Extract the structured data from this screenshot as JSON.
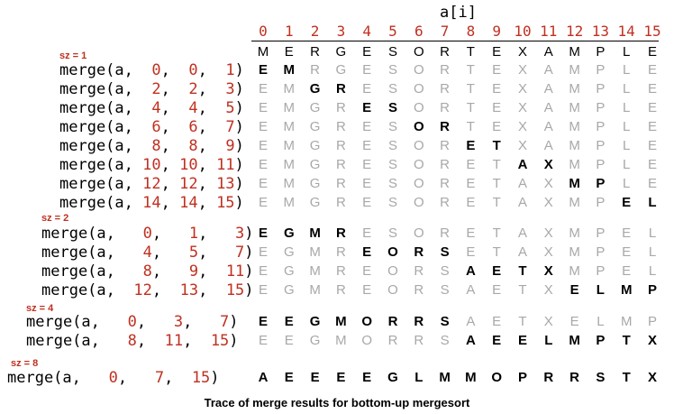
{
  "header_label": "a[i]",
  "indices": [
    "0",
    "1",
    "2",
    "3",
    "4",
    "5",
    "6",
    "7",
    "8",
    "9",
    "10",
    "11",
    "12",
    "13",
    "14",
    "15"
  ],
  "initial": [
    "M",
    "E",
    "R",
    "G",
    "E",
    "S",
    "O",
    "R",
    "T",
    "E",
    "X",
    "A",
    "M",
    "P",
    "L",
    "E"
  ],
  "groups": [
    {
      "label": "sz = 1",
      "rows": [
        {
          "lo": "0",
          "mid": "0",
          "hi": "1",
          "state": [
            "E",
            "M",
            "R",
            "G",
            "E",
            "S",
            "O",
            "R",
            "T",
            "E",
            "X",
            "A",
            "M",
            "P",
            "L",
            "E"
          ],
          "active": [
            0,
            1
          ]
        },
        {
          "lo": "2",
          "mid": "2",
          "hi": "3",
          "state": [
            "E",
            "M",
            "G",
            "R",
            "E",
            "S",
            "O",
            "R",
            "T",
            "E",
            "X",
            "A",
            "M",
            "P",
            "L",
            "E"
          ],
          "active": [
            2,
            3
          ]
        },
        {
          "lo": "4",
          "mid": "4",
          "hi": "5",
          "state": [
            "E",
            "M",
            "G",
            "R",
            "E",
            "S",
            "O",
            "R",
            "T",
            "E",
            "X",
            "A",
            "M",
            "P",
            "L",
            "E"
          ],
          "active": [
            4,
            5
          ]
        },
        {
          "lo": "6",
          "mid": "6",
          "hi": "7",
          "state": [
            "E",
            "M",
            "G",
            "R",
            "E",
            "S",
            "O",
            "R",
            "T",
            "E",
            "X",
            "A",
            "M",
            "P",
            "L",
            "E"
          ],
          "active": [
            6,
            7
          ]
        },
        {
          "lo": "8",
          "mid": "8",
          "hi": "9",
          "state": [
            "E",
            "M",
            "G",
            "R",
            "E",
            "S",
            "O",
            "R",
            "E",
            "T",
            "X",
            "A",
            "M",
            "P",
            "L",
            "E"
          ],
          "active": [
            8,
            9
          ]
        },
        {
          "lo": "10",
          "mid": "10",
          "hi": "11",
          "state": [
            "E",
            "M",
            "G",
            "R",
            "E",
            "S",
            "O",
            "R",
            "E",
            "T",
            "A",
            "X",
            "M",
            "P",
            "L",
            "E"
          ],
          "active": [
            10,
            11
          ]
        },
        {
          "lo": "12",
          "mid": "12",
          "hi": "13",
          "state": [
            "E",
            "M",
            "G",
            "R",
            "E",
            "S",
            "O",
            "R",
            "E",
            "T",
            "A",
            "X",
            "M",
            "P",
            "L",
            "E"
          ],
          "active": [
            12,
            13
          ]
        },
        {
          "lo": "14",
          "mid": "14",
          "hi": "15",
          "state": [
            "E",
            "M",
            "G",
            "R",
            "E",
            "S",
            "O",
            "R",
            "E",
            "T",
            "A",
            "X",
            "M",
            "P",
            "E",
            "L"
          ],
          "active": [
            14,
            15
          ]
        }
      ]
    },
    {
      "label": "sz = 2",
      "rows": [
        {
          "lo": "0",
          "mid": "1",
          "hi": "3",
          "state": [
            "E",
            "G",
            "M",
            "R",
            "E",
            "S",
            "O",
            "R",
            "E",
            "T",
            "A",
            "X",
            "M",
            "P",
            "E",
            "L"
          ],
          "active": [
            0,
            3
          ]
        },
        {
          "lo": "4",
          "mid": "5",
          "hi": "7",
          "state": [
            "E",
            "G",
            "M",
            "R",
            "E",
            "O",
            "R",
            "S",
            "E",
            "T",
            "A",
            "X",
            "M",
            "P",
            "E",
            "L"
          ],
          "active": [
            4,
            7
          ]
        },
        {
          "lo": "8",
          "mid": "9",
          "hi": "11",
          "state": [
            "E",
            "G",
            "M",
            "R",
            "E",
            "O",
            "R",
            "S",
            "A",
            "E",
            "T",
            "X",
            "M",
            "P",
            "E",
            "L"
          ],
          "active": [
            8,
            11
          ]
        },
        {
          "lo": "12",
          "mid": "13",
          "hi": "15",
          "state": [
            "E",
            "G",
            "M",
            "R",
            "E",
            "O",
            "R",
            "S",
            "A",
            "E",
            "T",
            "X",
            "E",
            "L",
            "M",
            "P"
          ],
          "active": [
            12,
            15
          ]
        }
      ]
    },
    {
      "label": "sz = 4",
      "rows": [
        {
          "lo": "0",
          "mid": "3",
          "hi": "7",
          "state": [
            "E",
            "E",
            "G",
            "M",
            "O",
            "R",
            "R",
            "S",
            "A",
            "E",
            "T",
            "X",
            "E",
            "L",
            "M",
            "P"
          ],
          "active": [
            0,
            7
          ]
        },
        {
          "lo": "8",
          "mid": "11",
          "hi": "15",
          "state": [
            "E",
            "E",
            "G",
            "M",
            "O",
            "R",
            "R",
            "S",
            "A",
            "E",
            "E",
            "L",
            "M",
            "P",
            "T",
            "X"
          ],
          "active": [
            8,
            15
          ]
        }
      ]
    },
    {
      "label": "sz = 8",
      "rows": [
        {
          "lo": "0",
          "mid": "7",
          "hi": "15",
          "state": [
            "A",
            "E",
            "E",
            "E",
            "E",
            "G",
            "L",
            "M",
            "M",
            "O",
            "P",
            "R",
            "R",
            "S",
            "T",
            "X"
          ],
          "active": [
            0,
            15
          ]
        }
      ]
    }
  ],
  "caption": "Trace of merge results for bottom-up mergesort"
}
